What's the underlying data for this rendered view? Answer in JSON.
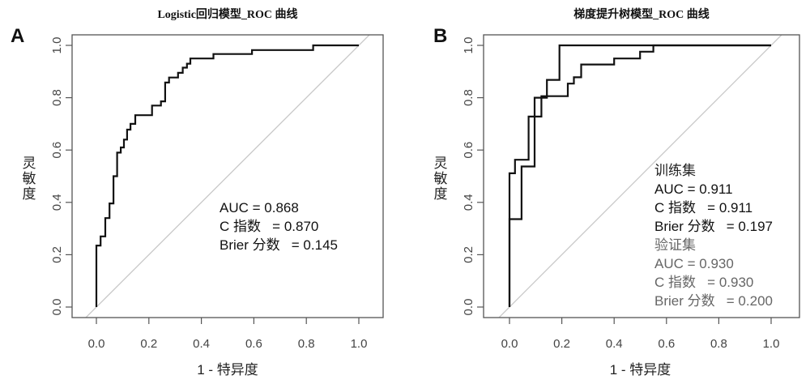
{
  "chart_data": [
    {
      "type": "line",
      "panel_label": "A",
      "title": "Logistic回归模型_ROC 曲线",
      "xlabel": "1 - 特异度",
      "ylabel": "灵敏度",
      "xlim": [
        0,
        1
      ],
      "ylim": [
        0,
        1
      ],
      "xticks": [
        "0.0",
        "0.2",
        "0.4",
        "0.6",
        "0.8",
        "1.0"
      ],
      "yticks": [
        "0.0",
        "0.2",
        "0.4",
        "0.6",
        "0.8",
        "1.0"
      ],
      "reference_line": "diagonal",
      "series": [
        {
          "name": "Logistic",
          "color": "#111111",
          "x": [
            0,
            0,
            0.016,
            0.016,
            0.034,
            0.034,
            0.05,
            0.05,
            0.065,
            0.065,
            0.079,
            0.079,
            0.093,
            0.093,
            0.105,
            0.105,
            0.117,
            0.117,
            0.13,
            0.13,
            0.148,
            0.148,
            0.212,
            0.212,
            0.246,
            0.246,
            0.262,
            0.262,
            0.277,
            0.277,
            0.311,
            0.311,
            0.329,
            0.329,
            0.345,
            0.345,
            0.358,
            0.358,
            0.446,
            0.446,
            0.593,
            0.593,
            0.826,
            0.826,
            1.0
          ],
          "y": [
            0,
            0.235,
            0.235,
            0.27,
            0.27,
            0.34,
            0.34,
            0.396,
            0.396,
            0.5,
            0.5,
            0.59,
            0.59,
            0.61,
            0.61,
            0.64,
            0.64,
            0.678,
            0.678,
            0.7,
            0.7,
            0.733,
            0.733,
            0.77,
            0.77,
            0.786,
            0.786,
            0.858,
            0.858,
            0.877,
            0.877,
            0.895,
            0.895,
            0.915,
            0.915,
            0.93,
            0.93,
            0.95,
            0.95,
            0.967,
            0.967,
            0.982,
            0.982,
            1.0,
            1.0
          ]
        }
      ],
      "annotations": [
        {
          "text": "AUC = 0.868",
          "color": "#111111"
        },
        {
          "text": "C 指数   = 0.870",
          "color": "#111111"
        },
        {
          "text": "Brier 分数   = 0.145",
          "color": "#111111"
        }
      ]
    },
    {
      "type": "line",
      "panel_label": "B",
      "title": "梯度提升树模型_ROC 曲线",
      "xlabel": "1 - 特异度",
      "ylabel": "灵敏度",
      "xlim": [
        0,
        1
      ],
      "ylim": [
        0,
        1
      ],
      "xticks": [
        "0.0",
        "0.2",
        "0.4",
        "0.6",
        "0.8",
        "1.0"
      ],
      "yticks": [
        "0.0",
        "0.2",
        "0.4",
        "0.6",
        "0.8",
        "1.0"
      ],
      "reference_line": "diagonal",
      "series": [
        {
          "name": "训练集",
          "color": "#111111",
          "x": [
            0,
            0,
            0.046,
            0.046,
            0.096,
            0.096,
            0.122,
            0.122,
            0.223,
            0.223,
            0.246,
            0.246,
            0.274,
            0.274,
            0.4,
            0.4,
            0.499,
            0.499,
            0.55,
            0.55,
            1.0
          ],
          "y": [
            0,
            0.336,
            0.336,
            0.537,
            0.537,
            0.728,
            0.728,
            0.806,
            0.806,
            0.854,
            0.854,
            0.878,
            0.878,
            0.927,
            0.927,
            0.95,
            0.95,
            0.976,
            0.976,
            1.0,
            1.0
          ]
        },
        {
          "name": "验证集",
          "color": "#111111",
          "x": [
            0,
            0,
            0.021,
            0.021,
            0.073,
            0.073,
            0.096,
            0.096,
            0.143,
            0.143,
            0.191,
            0.191,
            1.0
          ],
          "y": [
            0,
            0.511,
            0.511,
            0.563,
            0.563,
            0.728,
            0.728,
            0.8,
            0.8,
            0.868,
            0.868,
            1.0,
            1.0
          ]
        }
      ],
      "annotations": [
        {
          "text": "训练集",
          "color": "#222222"
        },
        {
          "text": "AUC = 0.911",
          "color": "#111111"
        },
        {
          "text": "C 指数   = 0.911",
          "color": "#111111"
        },
        {
          "text": "Brier 分数   = 0.197",
          "color": "#111111"
        },
        {
          "text": "验证集",
          "color": "#666666"
        },
        {
          "text": "AUC = 0.930",
          "color": "#666666"
        },
        {
          "text": "C 指数   = 0.930",
          "color": "#666666"
        },
        {
          "text": "Brier 分数   = 0.200",
          "color": "#666666"
        }
      ]
    }
  ]
}
